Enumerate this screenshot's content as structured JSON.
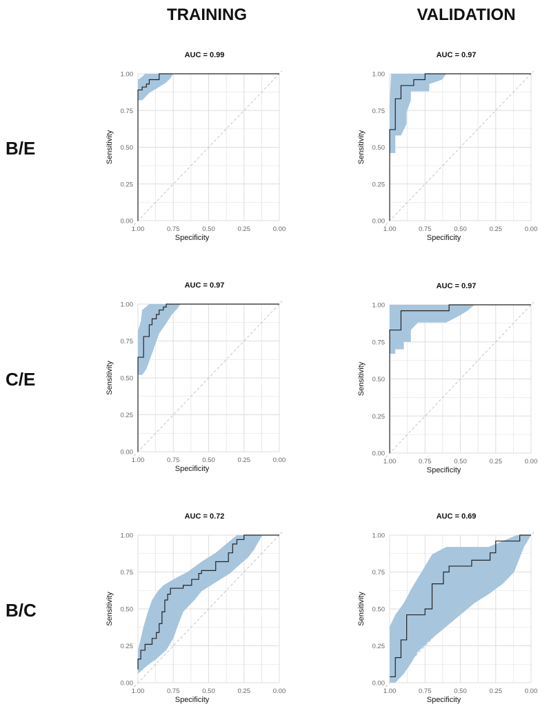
{
  "columns": [
    "TRAINING",
    "VALIDATION"
  ],
  "rows": [
    "B/E",
    "C/E",
    "B/C"
  ],
  "colors": {
    "band": "#a7c5dd",
    "curve": "#222222",
    "grid": "#dddddd",
    "diagonal": "#c4c4c4",
    "tick": "#666666"
  },
  "chart_data": [
    {
      "type": "line",
      "title": "AUC = 0.99",
      "xlabel": "Specificity",
      "ylabel": "Sensitivity",
      "xlim": [
        1,
        0
      ],
      "ylim": [
        0,
        1
      ],
      "x_reversed": true,
      "grid": true,
      "xticks": [
        "1.00",
        "0.75",
        "0.50",
        "0.25",
        "0.00"
      ],
      "yticks": [
        "0.00",
        "0.25",
        "0.50",
        "0.75",
        "1.00"
      ],
      "curve": [
        [
          1,
          0
        ],
        [
          1,
          0.89
        ],
        [
          0.97,
          0.89
        ],
        [
          0.97,
          0.91
        ],
        [
          0.94,
          0.91
        ],
        [
          0.94,
          0.93
        ],
        [
          0.92,
          0.93
        ],
        [
          0.92,
          0.96
        ],
        [
          0.85,
          0.96
        ],
        [
          0.85,
          1
        ],
        [
          0,
          1
        ]
      ],
      "ci_upper": [
        [
          1,
          0.96
        ],
        [
          0.97,
          0.98
        ],
        [
          0.95,
          1
        ],
        [
          0.75,
          1
        ],
        [
          0,
          1
        ]
      ],
      "ci_lower": [
        [
          0,
          1
        ],
        [
          0.75,
          1
        ],
        [
          0.77,
          0.97
        ],
        [
          0.8,
          0.94
        ],
        [
          0.85,
          0.91
        ],
        [
          0.92,
          0.87
        ],
        [
          0.97,
          0.82
        ],
        [
          1,
          0.82
        ]
      ]
    },
    {
      "type": "line",
      "title": "AUC = 0.97",
      "xlabel": "Specificity",
      "ylabel": "Sensitivity",
      "xlim": [
        1,
        0
      ],
      "ylim": [
        0,
        1
      ],
      "x_reversed": true,
      "grid": true,
      "xticks": [
        "1.00",
        "0.75",
        "0.50",
        "0.25",
        "0.00"
      ],
      "yticks": [
        "0.00",
        "0.25",
        "0.50",
        "0.75",
        "1.00"
      ],
      "curve": [
        [
          1,
          0
        ],
        [
          1,
          0.62
        ],
        [
          0.96,
          0.62
        ],
        [
          0.96,
          0.83
        ],
        [
          0.92,
          0.83
        ],
        [
          0.92,
          0.92
        ],
        [
          0.83,
          0.92
        ],
        [
          0.83,
          0.96
        ],
        [
          0.75,
          0.96
        ],
        [
          0.75,
          1
        ],
        [
          0,
          1
        ]
      ],
      "ci_upper": [
        [
          1,
          0.8
        ],
        [
          0.99,
          1
        ],
        [
          0.6,
          1
        ],
        [
          0,
          1
        ]
      ],
      "ci_lower": [
        [
          0,
          1
        ],
        [
          0.6,
          1
        ],
        [
          0.63,
          0.96
        ],
        [
          0.72,
          0.93
        ],
        [
          0.72,
          0.88
        ],
        [
          0.85,
          0.88
        ],
        [
          0.85,
          0.82
        ],
        [
          0.88,
          0.74
        ],
        [
          0.88,
          0.66
        ],
        [
          0.92,
          0.58
        ],
        [
          0.96,
          0.58
        ],
        [
          0.96,
          0.46
        ],
        [
          1,
          0.46
        ]
      ]
    },
    {
      "type": "line",
      "title": "AUC = 0.97",
      "xlabel": "Specificity",
      "ylabel": "Sensitivity",
      "xlim": [
        1,
        0
      ],
      "ylim": [
        0,
        1
      ],
      "x_reversed": true,
      "grid": true,
      "xticks": [
        "1.00",
        "0.75",
        "0.50",
        "0.25",
        "0.00"
      ],
      "yticks": [
        "0.00",
        "0.25",
        "0.50",
        "0.75",
        "1.00"
      ],
      "curve": [
        [
          1,
          0
        ],
        [
          1,
          0.64
        ],
        [
          0.96,
          0.64
        ],
        [
          0.96,
          0.78
        ],
        [
          0.92,
          0.78
        ],
        [
          0.92,
          0.86
        ],
        [
          0.9,
          0.86
        ],
        [
          0.9,
          0.9
        ],
        [
          0.87,
          0.9
        ],
        [
          0.87,
          0.93
        ],
        [
          0.85,
          0.93
        ],
        [
          0.85,
          0.96
        ],
        [
          0.82,
          0.96
        ],
        [
          0.82,
          0.98
        ],
        [
          0.8,
          0.98
        ],
        [
          0.8,
          1
        ],
        [
          0,
          1
        ]
      ],
      "ci_upper": [
        [
          1,
          0.82
        ],
        [
          0.98,
          0.88
        ],
        [
          0.97,
          0.96
        ],
        [
          0.92,
          1
        ],
        [
          0.7,
          1
        ],
        [
          0,
          1
        ]
      ],
      "ci_lower": [
        [
          0,
          1
        ],
        [
          0.7,
          1
        ],
        [
          0.72,
          0.97
        ],
        [
          0.76,
          0.93
        ],
        [
          0.8,
          0.87
        ],
        [
          0.85,
          0.8
        ],
        [
          0.88,
          0.72
        ],
        [
          0.91,
          0.64
        ],
        [
          0.94,
          0.56
        ],
        [
          0.97,
          0.52
        ],
        [
          1,
          0.52
        ]
      ]
    },
    {
      "type": "line",
      "title": "AUC = 0.97",
      "xlabel": "Specificity",
      "ylabel": "Sensitivity",
      "xlim": [
        1,
        0
      ],
      "ylim": [
        0,
        1
      ],
      "x_reversed": true,
      "grid": true,
      "xticks": [
        "1.00",
        "0.75",
        "0.50",
        "0.25",
        "0.00"
      ],
      "yticks": [
        "0.00",
        "0.25",
        "0.50",
        "0.75",
        "1.00"
      ],
      "curve": [
        [
          1,
          0
        ],
        [
          1,
          0.83
        ],
        [
          0.92,
          0.83
        ],
        [
          0.92,
          0.96
        ],
        [
          0.58,
          0.96
        ],
        [
          0.58,
          1
        ],
        [
          0,
          1
        ]
      ],
      "ci_upper": [
        [
          1,
          0.94
        ],
        [
          1,
          1
        ],
        [
          0,
          1
        ]
      ],
      "ci_lower": [
        [
          0,
          1
        ],
        [
          0.4,
          1
        ],
        [
          0.45,
          0.96
        ],
        [
          0.5,
          0.93
        ],
        [
          0.6,
          0.88
        ],
        [
          0.8,
          0.88
        ],
        [
          0.85,
          0.83
        ],
        [
          0.85,
          0.75
        ],
        [
          0.9,
          0.75
        ],
        [
          0.9,
          0.7
        ],
        [
          0.96,
          0.7
        ],
        [
          0.96,
          0.67
        ],
        [
          1,
          0.67
        ]
      ]
    },
    {
      "type": "line",
      "title": "AUC = 0.72",
      "xlabel": "Specificity",
      "ylabel": "Sensitivity",
      "xlim": [
        1,
        0
      ],
      "ylim": [
        0,
        1
      ],
      "x_reversed": true,
      "grid": true,
      "xticks": [
        "1.00",
        "0.75",
        "0.50",
        "0.25",
        "0.00"
      ],
      "yticks": [
        "0.00",
        "0.25",
        "0.50",
        "0.75",
        "1.00"
      ],
      "curve": [
        [
          1,
          0.09
        ],
        [
          1,
          0.16
        ],
        [
          0.98,
          0.16
        ],
        [
          0.98,
          0.22
        ],
        [
          0.95,
          0.22
        ],
        [
          0.95,
          0.26
        ],
        [
          0.9,
          0.26
        ],
        [
          0.9,
          0.3
        ],
        [
          0.87,
          0.3
        ],
        [
          0.87,
          0.34
        ],
        [
          0.85,
          0.34
        ],
        [
          0.85,
          0.4
        ],
        [
          0.83,
          0.4
        ],
        [
          0.83,
          0.48
        ],
        [
          0.81,
          0.48
        ],
        [
          0.81,
          0.56
        ],
        [
          0.79,
          0.56
        ],
        [
          0.79,
          0.6
        ],
        [
          0.77,
          0.6
        ],
        [
          0.77,
          0.64
        ],
        [
          0.68,
          0.64
        ],
        [
          0.68,
          0.66
        ],
        [
          0.62,
          0.66
        ],
        [
          0.62,
          0.7
        ],
        [
          0.57,
          0.7
        ],
        [
          0.57,
          0.74
        ],
        [
          0.55,
          0.74
        ],
        [
          0.55,
          0.76
        ],
        [
          0.45,
          0.76
        ],
        [
          0.45,
          0.82
        ],
        [
          0.36,
          0.82
        ],
        [
          0.36,
          0.88
        ],
        [
          0.33,
          0.88
        ],
        [
          0.33,
          0.94
        ],
        [
          0.3,
          0.94
        ],
        [
          0.3,
          0.97
        ],
        [
          0.25,
          0.97
        ],
        [
          0.25,
          1
        ],
        [
          0,
          1
        ]
      ],
      "ci_upper": [
        [
          1,
          0.22
        ],
        [
          0.98,
          0.3
        ],
        [
          0.96,
          0.38
        ],
        [
          0.93,
          0.48
        ],
        [
          0.9,
          0.56
        ],
        [
          0.86,
          0.62
        ],
        [
          0.82,
          0.66
        ],
        [
          0.75,
          0.7
        ],
        [
          0.65,
          0.75
        ],
        [
          0.55,
          0.82
        ],
        [
          0.45,
          0.88
        ],
        [
          0.35,
          0.96
        ],
        [
          0.3,
          1
        ],
        [
          0,
          1
        ]
      ],
      "ci_lower": [
        [
          0,
          1
        ],
        [
          0.12,
          1
        ],
        [
          0.18,
          0.9
        ],
        [
          0.22,
          0.85
        ],
        [
          0.28,
          0.8
        ],
        [
          0.35,
          0.74
        ],
        [
          0.45,
          0.68
        ],
        [
          0.55,
          0.62
        ],
        [
          0.6,
          0.56
        ],
        [
          0.68,
          0.48
        ],
        [
          0.72,
          0.38
        ],
        [
          0.75,
          0.3
        ],
        [
          0.8,
          0.22
        ],
        [
          0.87,
          0.16
        ],
        [
          0.93,
          0.12
        ],
        [
          1,
          0.06
        ]
      ]
    },
    {
      "type": "line",
      "title": "AUC = 0.69",
      "xlabel": "Specificity",
      "ylabel": "Sensitivity",
      "xlim": [
        1,
        0
      ],
      "ylim": [
        0,
        1
      ],
      "x_reversed": true,
      "grid": true,
      "xticks": [
        "1.00",
        "0.75",
        "0.50",
        "0.25",
        "0.00"
      ],
      "yticks": [
        "0.00",
        "0.25",
        "0.50",
        "0.75",
        "1.00"
      ],
      "curve": [
        [
          1,
          0.04
        ],
        [
          0.96,
          0.04
        ],
        [
          0.96,
          0.17
        ],
        [
          0.92,
          0.17
        ],
        [
          0.92,
          0.29
        ],
        [
          0.88,
          0.29
        ],
        [
          0.88,
          0.46
        ],
        [
          0.75,
          0.46
        ],
        [
          0.75,
          0.5
        ],
        [
          0.7,
          0.5
        ],
        [
          0.7,
          0.67
        ],
        [
          0.62,
          0.67
        ],
        [
          0.62,
          0.75
        ],
        [
          0.58,
          0.75
        ],
        [
          0.58,
          0.79
        ],
        [
          0.42,
          0.79
        ],
        [
          0.42,
          0.83
        ],
        [
          0.29,
          0.83
        ],
        [
          0.29,
          0.88
        ],
        [
          0.25,
          0.88
        ],
        [
          0.25,
          0.96
        ],
        [
          0.08,
          0.96
        ],
        [
          0.08,
          1
        ],
        [
          0,
          1
        ]
      ],
      "ci_upper": [
        [
          1,
          0.38
        ],
        [
          0.96,
          0.46
        ],
        [
          0.9,
          0.54
        ],
        [
          0.85,
          0.63
        ],
        [
          0.8,
          0.71
        ],
        [
          0.75,
          0.79
        ],
        [
          0.7,
          0.87
        ],
        [
          0.6,
          0.92
        ],
        [
          0.3,
          0.92
        ],
        [
          0.2,
          0.96
        ],
        [
          0.1,
          1
        ],
        [
          0,
          1
        ]
      ],
      "ci_lower": [
        [
          0,
          1
        ],
        [
          0.05,
          0.92
        ],
        [
          0.12,
          0.75
        ],
        [
          0.2,
          0.67
        ],
        [
          0.3,
          0.6
        ],
        [
          0.4,
          0.54
        ],
        [
          0.5,
          0.46
        ],
        [
          0.6,
          0.38
        ],
        [
          0.7,
          0.3
        ],
        [
          0.8,
          0.21
        ],
        [
          0.85,
          0.13
        ],
        [
          0.9,
          0.06
        ],
        [
          0.96,
          0
        ],
        [
          1,
          0
        ]
      ]
    }
  ]
}
